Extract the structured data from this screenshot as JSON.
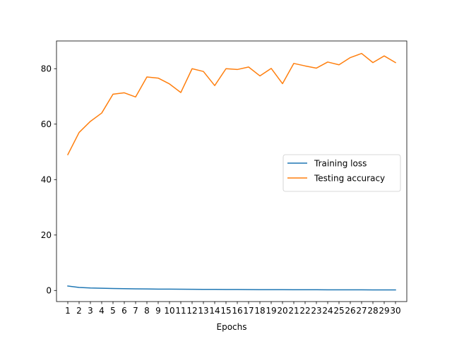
{
  "chart_data": {
    "type": "line",
    "title": "",
    "xlabel": "Epochs",
    "ylabel": "",
    "x": [
      1,
      2,
      3,
      4,
      5,
      6,
      7,
      8,
      9,
      10,
      11,
      12,
      13,
      14,
      15,
      16,
      17,
      18,
      19,
      20,
      21,
      22,
      23,
      24,
      25,
      26,
      27,
      28,
      29,
      30
    ],
    "ylim": [
      -4,
      90
    ],
    "yticks": [
      0,
      20,
      40,
      60,
      80
    ],
    "grid": false,
    "legend_position": "center-right",
    "series": [
      {
        "name": "Training loss",
        "color": "#1f77b4",
        "values": [
          1.6,
          1.1,
          0.9,
          0.8,
          0.7,
          0.65,
          0.6,
          0.55,
          0.5,
          0.48,
          0.45,
          0.43,
          0.41,
          0.39,
          0.37,
          0.35,
          0.33,
          0.31,
          0.3,
          0.29,
          0.28,
          0.27,
          0.26,
          0.25,
          0.24,
          0.23,
          0.22,
          0.21,
          0.2,
          0.2
        ]
      },
      {
        "name": "Testing accuracy",
        "color": "#ff7f0e",
        "values": [
          49.0,
          57.0,
          61.0,
          64.0,
          70.8,
          71.3,
          69.8,
          77.0,
          76.6,
          74.5,
          71.4,
          80.0,
          79.0,
          73.9,
          80.0,
          79.7,
          80.6,
          77.4,
          80.1,
          74.6,
          81.9,
          81.0,
          80.2,
          82.4,
          81.4,
          84.0,
          85.5,
          82.2,
          84.6,
          82.2
        ]
      }
    ]
  }
}
